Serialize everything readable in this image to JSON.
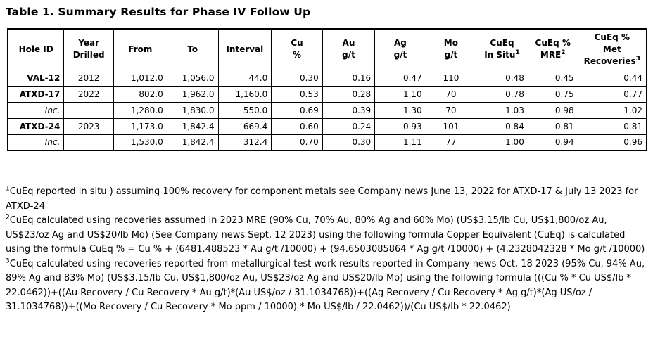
{
  "title": "Table 1. Summary Results for Phase IV Follow Up",
  "table": {
    "columns": [
      {
        "key": "hole-id",
        "lines": [
          "Hole ID"
        ],
        "align": "right"
      },
      {
        "key": "year-drilled",
        "lines": [
          "Year",
          "Drilled"
        ],
        "align": "center"
      },
      {
        "key": "from",
        "lines": [
          "From"
        ],
        "align": "right"
      },
      {
        "key": "to",
        "lines": [
          "To"
        ],
        "align": "right"
      },
      {
        "key": "interval",
        "lines": [
          "Interval"
        ],
        "align": "right"
      },
      {
        "key": "cu-pct",
        "lines": [
          "Cu",
          "%"
        ],
        "align": "right"
      },
      {
        "key": "au-gpt",
        "lines": [
          "Au",
          "g/t"
        ],
        "align": "right"
      },
      {
        "key": "ag-gpt",
        "lines": [
          "Ag",
          "g/t"
        ],
        "align": "right"
      },
      {
        "key": "mo-gpt",
        "lines": [
          "Mo",
          "g/t"
        ],
        "align": "center"
      },
      {
        "key": "cueq-in-situ",
        "lines": [
          "CuEq",
          "In Situ"
        ],
        "sup": "1",
        "align": "right"
      },
      {
        "key": "cueq-mre",
        "lines": [
          "CuEq %",
          "MRE"
        ],
        "sup": "2",
        "align": "right"
      },
      {
        "key": "cueq-met-recoveries",
        "lines": [
          "CuEq %",
          "Met",
          "Recoveries"
        ],
        "sup": "3",
        "align": "right"
      }
    ],
    "rows": [
      {
        "kind": "hole",
        "cells": [
          "VAL-12",
          "2012",
          "1,012.0",
          "1,056.0",
          "44.0",
          "0.30",
          "0.16",
          "0.47",
          "110",
          "0.48",
          "0.45",
          "0.44"
        ]
      },
      {
        "kind": "hole",
        "cells": [
          "ATXD-17",
          "2022",
          "802.0",
          "1,962.0",
          "1,160.0",
          "0.53",
          "0.28",
          "1.10",
          "70",
          "0.78",
          "0.75",
          "0.77"
        ]
      },
      {
        "kind": "inc",
        "cells": [
          "Inc.",
          "",
          "1,280.0",
          "1,830.0",
          "550.0",
          "0.69",
          "0.39",
          "1.30",
          "70",
          "1.03",
          "0.98",
          "1.02"
        ]
      },
      {
        "kind": "hole",
        "cells": [
          "ATXD-24",
          "2023",
          "1,173.0",
          "1,842.4",
          "669.4",
          "0.60",
          "0.24",
          "0.93",
          "101",
          "0.84",
          "0.81",
          "0.81"
        ]
      },
      {
        "kind": "inc",
        "cells": [
          "Inc.",
          "",
          "1,530.0",
          "1,842.4",
          "312.4",
          "0.70",
          "0.30",
          "1.11",
          "77",
          "1.00",
          "0.94",
          "0.96"
        ]
      }
    ]
  },
  "footnotes": [
    {
      "sup": "1",
      "text": "CuEq reported in situ ) assuming 100% recovery for component metals see Company news June 13, 2022 for ATXD-17 & July 13 2023 for ATXD-24"
    },
    {
      "sup": "2",
      "text": "CuEq calculated using recoveries assumed in 2023 MRE (90% Cu, 70% Au, 80% Ag and 60% Mo) (US$3.15/lb Cu, US$1,800/oz Au, US$23/oz Ag and US$20/lb Mo) (See Company news Sept, 12 2023) using the following formula Copper Equivalent (CuEq) is calculated using the formula CuEq % = Cu % + (6481.488523 * Au g/t /10000) + (94.6503085864 * Ag g/t /10000) + (4.2328042328 * Mo g/t /10000)"
    },
    {
      "sup": "3",
      "text": "CuEq calculated using recoveries reported from metallurgical test work results reported in Company news Oct, 18 2023 (95% Cu, 94% Au, 89% Ag and 83% Mo) (US$3.15/lb Cu, US$1,800/oz Au, US$23/oz Ag and US$20/lb Mo) using the following formula (((Cu % * Cu US$/lb * 22.0462))+((Au Recovery / Cu Recovery * Au g/t)*(Au US$/oz / 31.1034768))+((Ag Recovery / Cu Recovery * Ag g/t)*(Ag US/oz / 31.1034768))+((Mo Recovery / Cu Recovery * Mo ppm / 10000) * Mo US$/lb / 22.0462))/(Cu US$/lb * 22.0462)"
    }
  ]
}
